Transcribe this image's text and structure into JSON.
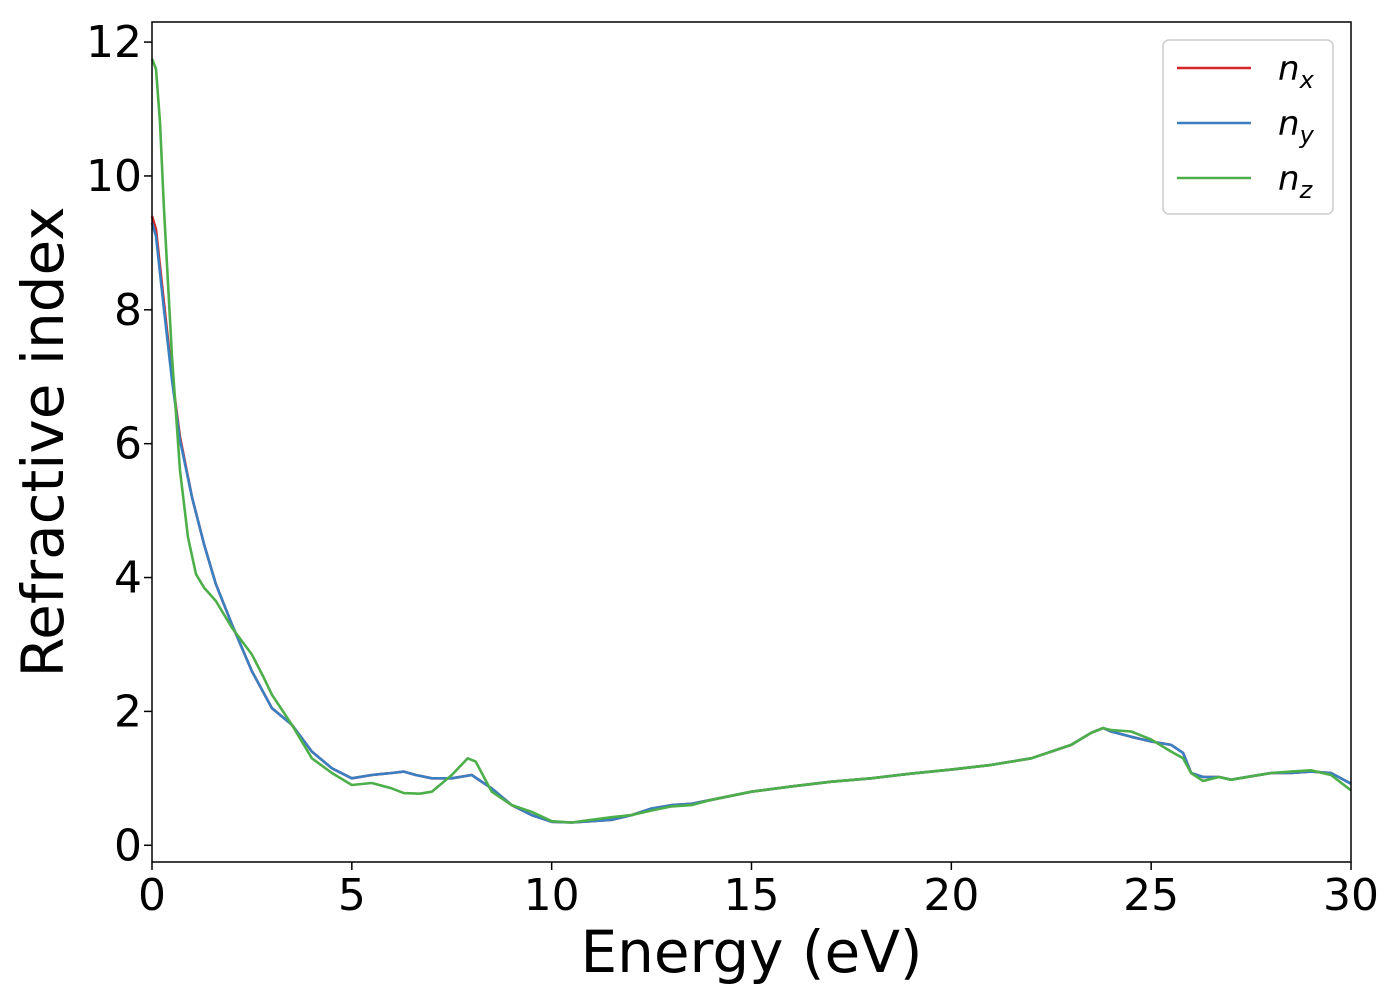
{
  "chart_data": {
    "type": "line",
    "title": "",
    "xlabel": "Energy (eV)",
    "ylabel": "Refractive index",
    "xlim": [
      0,
      30
    ],
    "ylim": [
      -0.25,
      12.3
    ],
    "xticks": [
      0,
      5,
      10,
      15,
      20,
      25,
      30
    ],
    "yticks": [
      0,
      2,
      4,
      6,
      8,
      10,
      12
    ],
    "grid": false,
    "legend_position": "top-right",
    "series": [
      {
        "name": "n_x",
        "base": "n",
        "sub": "x",
        "color": "#d62728",
        "x": [
          0,
          0.1,
          0.3,
          0.5,
          0.7,
          1,
          1.3,
          1.6,
          2,
          2.5,
          3,
          3.5,
          4,
          4.5,
          5,
          5.5,
          6,
          6.3,
          6.6,
          7,
          7.5,
          8,
          8.5,
          9,
          9.5,
          10,
          10.5,
          11,
          11.5,
          12,
          12.5,
          13,
          13.5,
          14,
          15,
          16,
          17,
          18,
          19,
          20,
          21,
          22,
          23,
          23.5,
          23.8,
          24,
          24.5,
          25,
          25.5,
          25.8,
          26,
          26.3,
          26.7,
          27,
          27.5,
          28,
          28.5,
          29,
          29.5,
          30
        ],
        "y": [
          9.4,
          9.2,
          8.1,
          7.0,
          6.1,
          5.2,
          4.5,
          3.9,
          3.3,
          2.6,
          2.05,
          1.8,
          1.4,
          1.15,
          1.0,
          1.05,
          1.08,
          1.1,
          1.05,
          1.0,
          1.0,
          1.05,
          0.85,
          0.6,
          0.45,
          0.35,
          0.34,
          0.36,
          0.38,
          0.45,
          0.55,
          0.6,
          0.62,
          0.68,
          0.8,
          0.88,
          0.95,
          1.0,
          1.07,
          1.13,
          1.2,
          1.3,
          1.5,
          1.68,
          1.75,
          1.7,
          1.62,
          1.55,
          1.5,
          1.38,
          1.08,
          1.02,
          1.02,
          0.98,
          1.03,
          1.08,
          1.08,
          1.1,
          1.08,
          0.92
        ]
      },
      {
        "name": "n_y",
        "base": "n",
        "sub": "y",
        "color": "#3a7fc1",
        "x": [
          0,
          0.1,
          0.3,
          0.5,
          0.7,
          1,
          1.3,
          1.6,
          2,
          2.5,
          3,
          3.5,
          4,
          4.5,
          5,
          5.5,
          6,
          6.3,
          6.6,
          7,
          7.5,
          8,
          8.5,
          9,
          9.5,
          10,
          10.5,
          11,
          11.5,
          12,
          12.5,
          13,
          13.5,
          14,
          15,
          16,
          17,
          18,
          19,
          20,
          21,
          22,
          23,
          23.5,
          23.8,
          24,
          24.5,
          25,
          25.5,
          25.8,
          26,
          26.3,
          26.7,
          27,
          27.5,
          28,
          28.5,
          29,
          29.5,
          30
        ],
        "y": [
          9.3,
          9.1,
          8.0,
          6.95,
          6.05,
          5.2,
          4.5,
          3.9,
          3.3,
          2.6,
          2.05,
          1.8,
          1.4,
          1.15,
          1.0,
          1.05,
          1.08,
          1.1,
          1.05,
          1.0,
          1.0,
          1.05,
          0.85,
          0.6,
          0.45,
          0.35,
          0.34,
          0.36,
          0.38,
          0.45,
          0.55,
          0.6,
          0.62,
          0.68,
          0.8,
          0.88,
          0.95,
          1.0,
          1.07,
          1.13,
          1.2,
          1.3,
          1.5,
          1.68,
          1.75,
          1.7,
          1.62,
          1.55,
          1.5,
          1.38,
          1.08,
          1.02,
          1.02,
          0.98,
          1.03,
          1.08,
          1.08,
          1.1,
          1.08,
          0.92
        ]
      },
      {
        "name": "n_z",
        "base": "n",
        "sub": "z",
        "color": "#4daf4a",
        "x": [
          0,
          0.1,
          0.2,
          0.3,
          0.5,
          0.7,
          0.9,
          1.1,
          1.3,
          1.6,
          2,
          2.5,
          2.8,
          3,
          3.5,
          4,
          4.5,
          5,
          5.5,
          6,
          6.3,
          6.7,
          7,
          7.5,
          7.9,
          8.1,
          8.5,
          9,
          9.5,
          10,
          10.5,
          11,
          11.5,
          12,
          12.5,
          13,
          13.5,
          14,
          15,
          16,
          17,
          18,
          19,
          20,
          21,
          22,
          23,
          23.5,
          23.8,
          24,
          24.5,
          25,
          25.5,
          25.8,
          26,
          26.3,
          26.7,
          27,
          27.5,
          28,
          28.5,
          29,
          29.5,
          30
        ],
        "y": [
          11.75,
          11.6,
          10.8,
          9.5,
          7.3,
          5.6,
          4.6,
          4.05,
          3.85,
          3.65,
          3.25,
          2.85,
          2.5,
          2.25,
          1.8,
          1.3,
          1.08,
          0.9,
          0.93,
          0.85,
          0.78,
          0.77,
          0.8,
          1.05,
          1.3,
          1.25,
          0.8,
          0.6,
          0.5,
          0.36,
          0.34,
          0.38,
          0.42,
          0.45,
          0.52,
          0.58,
          0.6,
          0.68,
          0.8,
          0.88,
          0.95,
          1.0,
          1.07,
          1.13,
          1.2,
          1.3,
          1.5,
          1.68,
          1.75,
          1.72,
          1.7,
          1.58,
          1.4,
          1.3,
          1.08,
          0.96,
          1.02,
          0.98,
          1.03,
          1.08,
          1.1,
          1.12,
          1.05,
          0.82
        ]
      }
    ]
  }
}
